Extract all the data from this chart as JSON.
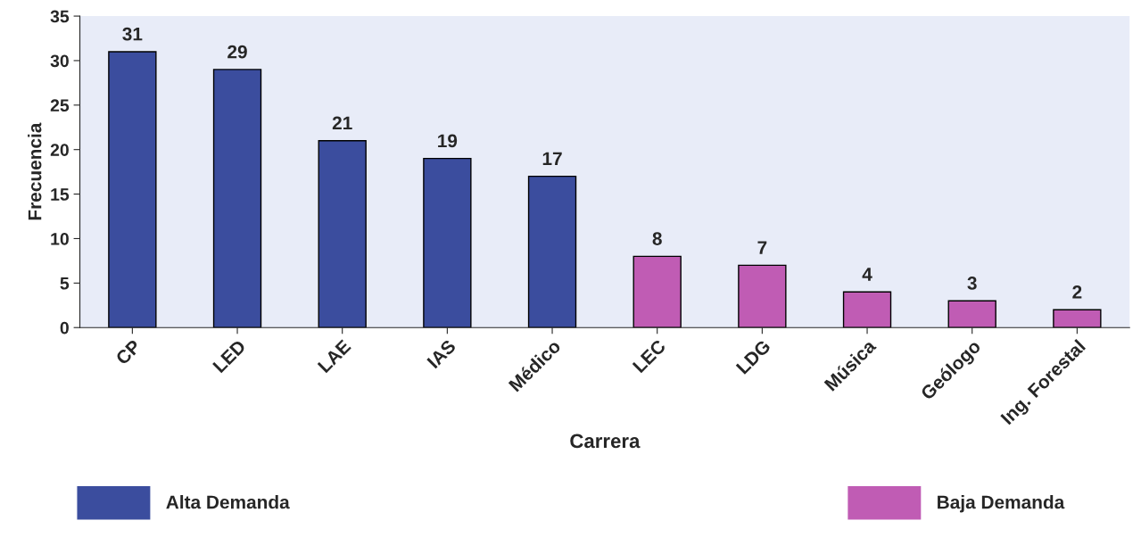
{
  "chart_data": {
    "type": "bar",
    "xlabel": "Carrera",
    "ylabel": "Frecuencia",
    "categories": [
      "CP",
      "LED",
      "LAE",
      "IAS",
      "Médico",
      "LEC",
      "LDG",
      "Música",
      "Geólogo",
      "Ing. Forestal"
    ],
    "series": [
      {
        "name": "Alta Demanda",
        "color": "#3b4d9e",
        "values": [
          31,
          29,
          21,
          19,
          17,
          null,
          null,
          null,
          null,
          null
        ]
      },
      {
        "name": "Baja Demanda",
        "color": "#c05cb4",
        "values": [
          null,
          null,
          null,
          null,
          null,
          8,
          7,
          4,
          3,
          2
        ]
      }
    ],
    "ylim": [
      0,
      35
    ],
    "yticks": [
      0,
      5,
      10,
      15,
      20,
      25,
      30,
      35
    ],
    "data_labels": true,
    "legend": "bottom",
    "grid": false
  }
}
